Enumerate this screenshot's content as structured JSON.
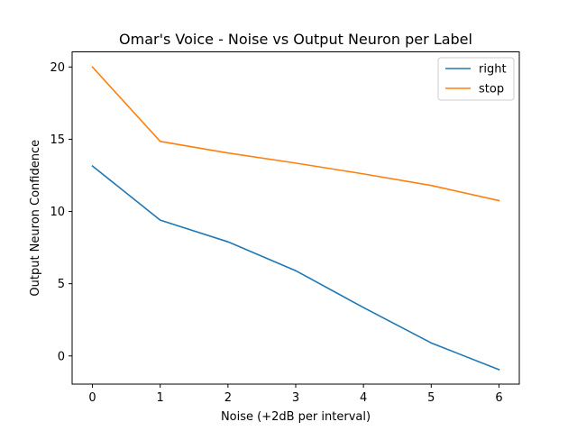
{
  "chart_data": {
    "type": "line",
    "title": "Omar's Voice - Noise vs Output Neuron per Label",
    "xlabel": "Noise (+2dB per interval)",
    "ylabel": "Output Neuron Confidence",
    "x": [
      0,
      1,
      2,
      3,
      4,
      5,
      6
    ],
    "xlim": [
      -0.3,
      6.3
    ],
    "ylim": [
      -1.95,
      21.05
    ],
    "xticks": [
      0,
      1,
      2,
      3,
      4,
      5,
      6
    ],
    "yticks": [
      0,
      5,
      10,
      15,
      20
    ],
    "grid": false,
    "legend_position": "top-right",
    "series": [
      {
        "name": "right",
        "color": "#1f77b4",
        "values": [
          13.15,
          9.4,
          7.9,
          5.9,
          3.35,
          0.9,
          -0.95
        ]
      },
      {
        "name": "stop",
        "color": "#ff7f0e",
        "values": [
          20.0,
          14.85,
          14.05,
          13.35,
          12.6,
          11.8,
          10.75
        ]
      }
    ]
  }
}
